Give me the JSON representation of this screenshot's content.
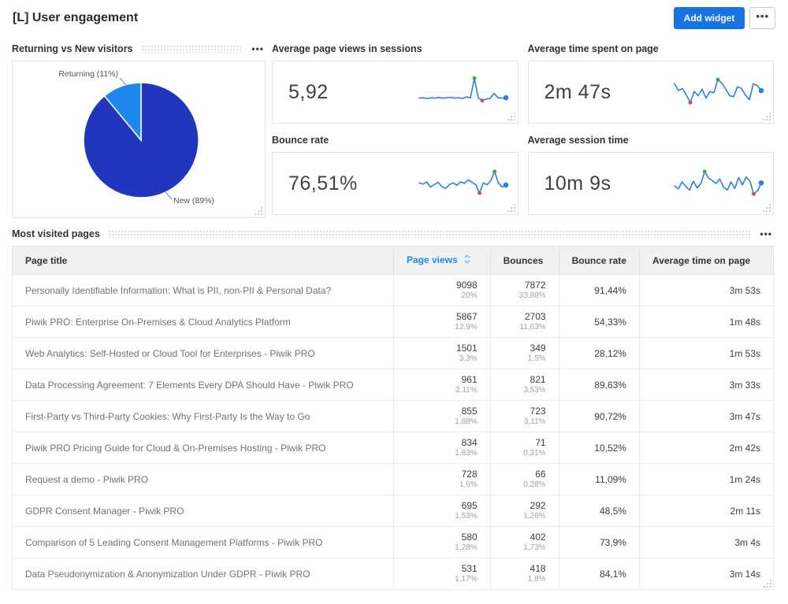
{
  "header": {
    "title": "[L] User engagement",
    "add_widget_label": "Add widget",
    "menu_icon": "ellipsis-icon"
  },
  "colors": {
    "accent": "#1673e6",
    "spark": "#2b7fe8",
    "pie_new": "#1f36bd",
    "pie_returning": "#1e87f0",
    "marker_green": "#43a047",
    "marker_red": "#d64b3c",
    "sorted_header": "#1e87f0"
  },
  "chart_data": [
    {
      "type": "pie",
      "title": "Returning vs New visitors",
      "labels": [
        "Returning",
        "New"
      ],
      "values": [
        11,
        89
      ],
      "label_texts": [
        "Returning (11%)",
        "New (89%)"
      ],
      "colors": [
        "#1e87f0",
        "#1f36bd"
      ],
      "legend_position": "callout-labels"
    },
    {
      "type": "line",
      "title": "Average page views in sessions",
      "kpi_value": "5,92",
      "y_norm": [
        30,
        31,
        29,
        31,
        30,
        32,
        30,
        31,
        33,
        30,
        31,
        29,
        34,
        31,
        97,
        30,
        22,
        27,
        29,
        46,
        31,
        30,
        31
      ]
    },
    {
      "type": "line",
      "title": "Average time spent on page",
      "kpi_value": "2m 47s",
      "y_norm": [
        78,
        55,
        62,
        40,
        15,
        52,
        38,
        60,
        30,
        52,
        48,
        92,
        80,
        60,
        38,
        35,
        68,
        62,
        40,
        25,
        78,
        72,
        55
      ]
    },
    {
      "type": "line",
      "title": "Bounce rate",
      "kpi_value": "76,51%",
      "y_norm": [
        52,
        48,
        55,
        38,
        46,
        54,
        40,
        33,
        46,
        52,
        44,
        56,
        50,
        62,
        54,
        46,
        18,
        52,
        46,
        60,
        90,
        52,
        38,
        45
      ]
    },
    {
      "type": "line",
      "title": "Average session time",
      "kpi_value": "10m 9s",
      "y_norm": [
        42,
        32,
        55,
        40,
        28,
        58,
        35,
        50,
        90,
        68,
        60,
        50,
        65,
        38,
        28,
        55,
        33,
        70,
        45,
        72,
        58,
        15,
        25,
        52
      ]
    }
  ],
  "table": {
    "title": "Most visited pages",
    "columns": [
      "Page title",
      "Page views",
      "Bounces",
      "Bounce rate",
      "Average time on page"
    ],
    "sorted_column": "Page views",
    "rows": [
      {
        "title": "Personally Identifiable Information: What is PII, non-PII & Personal Data?",
        "views": "9098",
        "views_pct": "20%",
        "bounces": "7872",
        "bounces_pct": "33,88%",
        "bounce_rate": "91,44%",
        "avg_time": "3m 53s"
      },
      {
        "title": "Piwik PRO: Enterprise On-Premises & Cloud Analytics Platform",
        "views": "5867",
        "views_pct": "12,9%",
        "bounces": "2703",
        "bounces_pct": "11,63%",
        "bounce_rate": "54,33%",
        "avg_time": "1m 48s"
      },
      {
        "title": "Web Analytics: Self-Hosted or Cloud Tool for Enterprises - Piwik PRO",
        "views": "1501",
        "views_pct": "3,3%",
        "bounces": "349",
        "bounces_pct": "1,5%",
        "bounce_rate": "28,12%",
        "avg_time": "1m 53s"
      },
      {
        "title": "Data Processing Agreement: 7 Elements Every DPA Should Have - Piwik PRO",
        "views": "961",
        "views_pct": "2,11%",
        "bounces": "821",
        "bounces_pct": "3,53%",
        "bounce_rate": "89,63%",
        "avg_time": "3m 33s"
      },
      {
        "title": "First-Party vs Third-Party Cookies: Why First-Party Is the Way to Go",
        "views": "855",
        "views_pct": "1,88%",
        "bounces": "723",
        "bounces_pct": "3,11%",
        "bounce_rate": "90,72%",
        "avg_time": "3m 47s"
      },
      {
        "title": "Piwik PRO Pricing Guide for Cloud & On-Premises Hosting - Piwik PRO",
        "views": "834",
        "views_pct": "1,83%",
        "bounces": "71",
        "bounces_pct": "0,31%",
        "bounce_rate": "10,52%",
        "avg_time": "2m 42s"
      },
      {
        "title": "Request a demo - Piwik PRO",
        "views": "728",
        "views_pct": "1,6%",
        "bounces": "66",
        "bounces_pct": "0,28%",
        "bounce_rate": "11,09%",
        "avg_time": "1m 24s"
      },
      {
        "title": "GDPR Consent Manager - Piwik PRO",
        "views": "695",
        "views_pct": "1,53%",
        "bounces": "292",
        "bounces_pct": "1,26%",
        "bounce_rate": "48,5%",
        "avg_time": "2m 11s"
      },
      {
        "title": "Comparison of 5 Leading Consent Management Platforms - Piwik PRO",
        "views": "580",
        "views_pct": "1,28%",
        "bounces": "402",
        "bounces_pct": "1,73%",
        "bounce_rate": "73,9%",
        "avg_time": "3m 4s"
      },
      {
        "title": "Data Pseudonymization & Anonymization Under GDPR - Piwik PRO",
        "views": "531",
        "views_pct": "1,17%",
        "bounces": "418",
        "bounces_pct": "1,8%",
        "bounce_rate": "84,1%",
        "avg_time": "3m 14s"
      }
    ]
  }
}
